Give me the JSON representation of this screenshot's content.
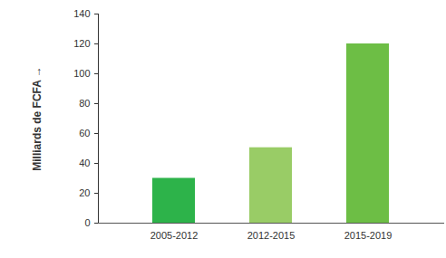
{
  "chart_data": {
    "type": "bar",
    "y_label": "Milliards de FCFA",
    "categories": [
      "2005-2012",
      "2012-2015",
      "2015-2019"
    ],
    "values": [
      30,
      50.5,
      120
    ],
    "colors": [
      "#2db34a",
      "#99cc66",
      "#6dbe45"
    ],
    "ylim": [
      0,
      140
    ],
    "yticks": [
      0,
      20,
      40,
      60,
      80,
      100,
      120,
      140
    ],
    "grid": false
  }
}
